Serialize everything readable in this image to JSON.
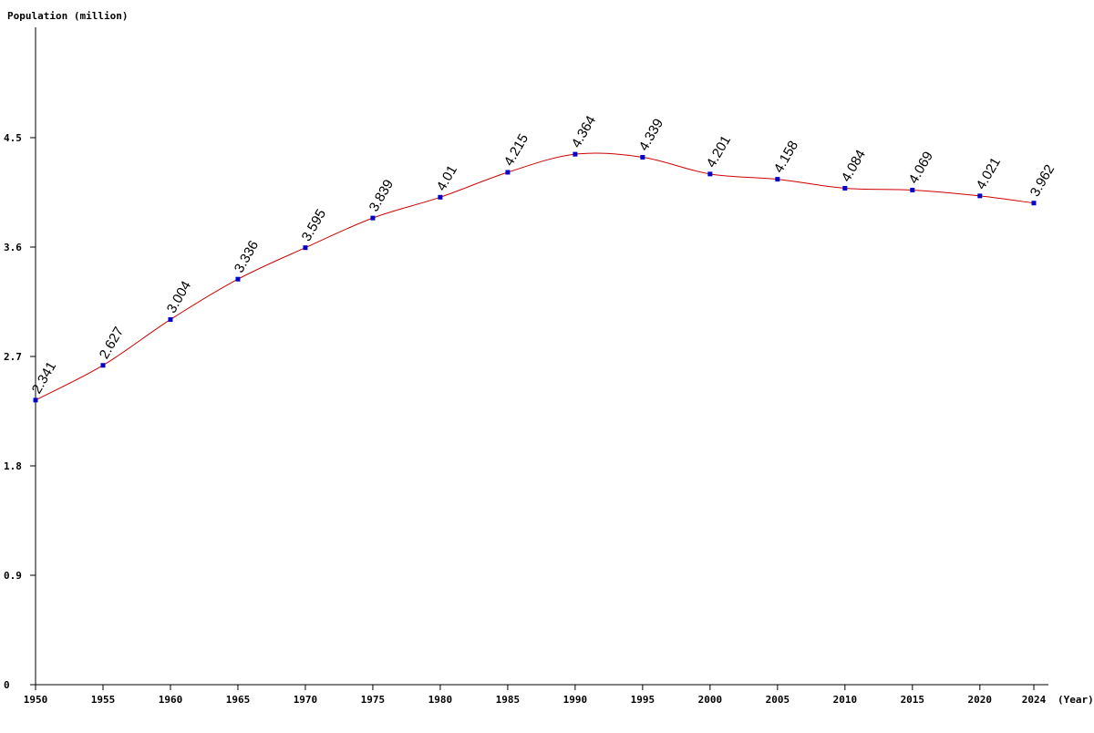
{
  "chart_data": {
    "type": "line",
    "ylabel": "Population (million)",
    "xlabel": "(Year)",
    "x": [
      "1950",
      "1955",
      "1960",
      "1965",
      "1970",
      "1975",
      "1980",
      "1985",
      "1990",
      "1995",
      "2000",
      "2005",
      "2010",
      "2015",
      "2020",
      "2024"
    ],
    "series": [
      {
        "values": [
          2.341,
          2.627,
          3.004,
          3.336,
          3.595,
          3.839,
          4.01,
          4.215,
          4.364,
          4.339,
          4.201,
          4.158,
          4.084,
          4.069,
          4.021,
          3.962
        ],
        "labels": [
          "2.341",
          "2.627",
          "3.004",
          "3.336",
          "3.595",
          "3.839",
          "4.01",
          "4.215",
          "4.364",
          "4.339",
          "4.201",
          "4.158",
          "4.084",
          "4.069",
          "4.021",
          "3.962"
        ]
      }
    ],
    "y_ticks": [
      "0",
      "0.9",
      "1.8",
      "2.7",
      "3.6",
      "4.5"
    ],
    "ylim": [
      0,
      5.4
    ],
    "grid": false,
    "legend": "none",
    "colors": {
      "line": "#cc0000",
      "marker": "#0000cc",
      "axis": "#000000"
    }
  }
}
